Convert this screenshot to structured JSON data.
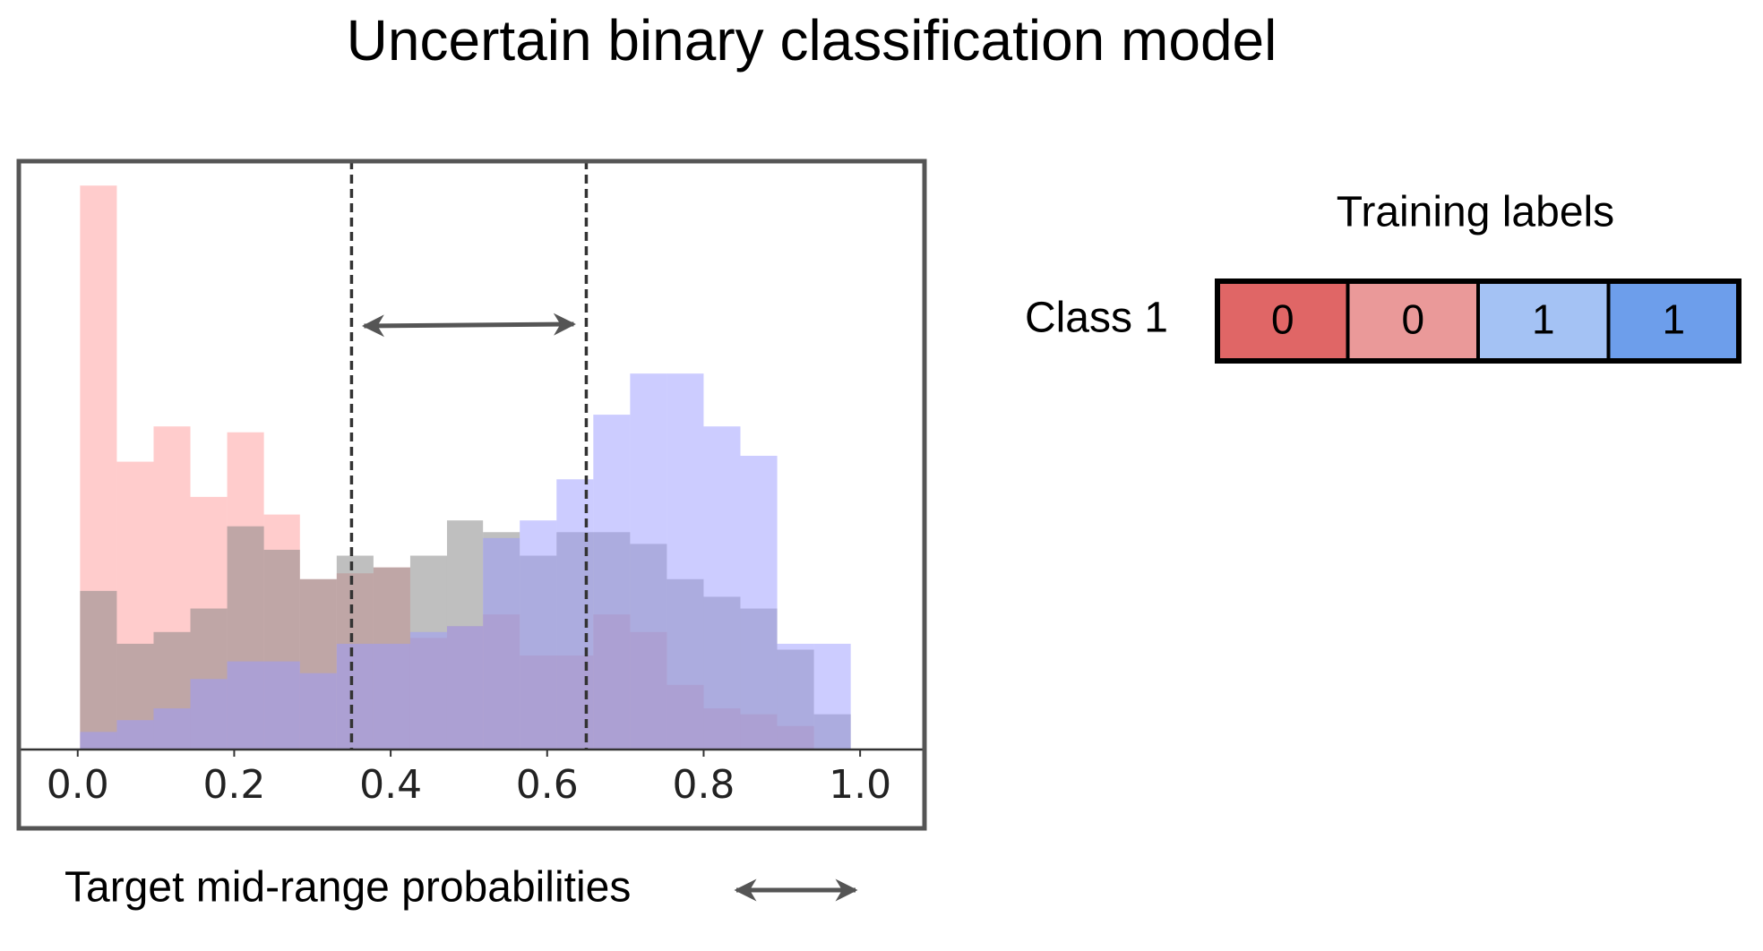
{
  "title": "Uncertain binary classification model",
  "chart_data": {
    "type": "histogram",
    "bins": [
      0.003,
      0.05,
      0.097,
      0.144,
      0.191,
      0.238,
      0.284,
      0.331,
      0.378,
      0.425,
      0.472,
      0.518,
      0.565,
      0.612,
      0.659,
      0.706,
      0.753,
      0.8,
      0.847,
      0.894,
      0.941,
      0.988
    ],
    "series": [
      {
        "color": "#ff9a9a",
        "values": [
          0.96,
          0.49,
          0.55,
          0.43,
          0.54,
          0.4,
          0.29,
          0.3,
          0.31,
          0.19,
          0.21,
          0.23,
          0.16,
          0.16,
          0.23,
          0.2,
          0.11,
          0.07,
          0.06,
          0.04,
          0.0
        ]
      },
      {
        "color": "#7f7f7f",
        "values": [
          0.27,
          0.18,
          0.2,
          0.24,
          0.38,
          0.34,
          0.29,
          0.33,
          0.31,
          0.33,
          0.39,
          0.37,
          0.33,
          0.37,
          0.37,
          0.35,
          0.29,
          0.26,
          0.24,
          0.17,
          0.06
        ]
      },
      {
        "color": "#9999ff",
        "values": [
          0.03,
          0.05,
          0.07,
          0.12,
          0.15,
          0.15,
          0.13,
          0.18,
          0.18,
          0.2,
          0.21,
          0.36,
          0.39,
          0.46,
          0.57,
          0.64,
          0.64,
          0.55,
          0.5,
          0.18,
          0.18
        ]
      }
    ],
    "xlim": [
      -0.073,
      1.08
    ],
    "xticks": [
      {
        "value": 0,
        "label": "0.0"
      },
      0.2,
      0.4,
      0.6,
      0.8,
      {
        "value": 1,
        "label": "1.0"
      }
    ],
    "ylim": [
      0,
      1
    ],
    "vlines": [
      0.35,
      0.65
    ],
    "caption": "Target mid-range probabilities"
  },
  "training_labels": {
    "title": "Training labels",
    "row_label": "Class 1",
    "cells": [
      {
        "text": "0",
        "color": "#e06666"
      },
      {
        "text": "0",
        "color": "#ea9999"
      },
      {
        "text": "1",
        "color": "#a4c2f4"
      },
      {
        "text": "1",
        "color": "#6d9eeb"
      }
    ]
  }
}
